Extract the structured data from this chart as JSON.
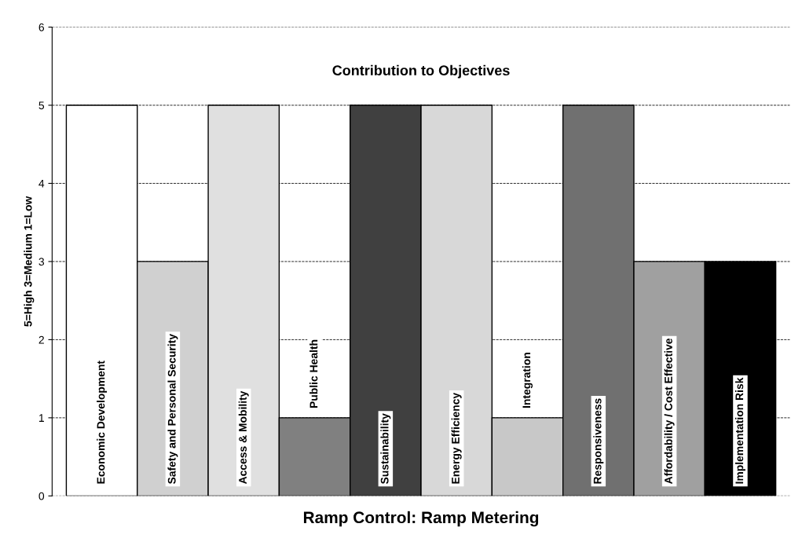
{
  "chart_data": {
    "type": "bar",
    "title": "Contribution to Objectives",
    "xlabel": "Ramp Control: Ramp Metering",
    "ylabel": "5=High 3=Medium 1=Low",
    "categories": [
      "Economic Development",
      "Safety and Personal Security",
      "Access & Mobility",
      "Public Health",
      "Sustainability",
      "Energy Efficiency",
      "Integration",
      "Responsiveness",
      "Affordability / Cost Effective",
      "Implementation Risk"
    ],
    "values": [
      5,
      3,
      5,
      1,
      5,
      5,
      1,
      5,
      3,
      3
    ],
    "colors": [
      "#ffffff",
      "#d0d0d0",
      "#e0e0e0",
      "#808080",
      "#404040",
      "#d8d8d8",
      "#c8c8c8",
      "#707070",
      "#a0a0a0",
      "#000000"
    ],
    "ylim": [
      0,
      6
    ],
    "yticks": [
      0,
      1,
      2,
      3,
      4,
      5,
      6
    ],
    "grid": "y",
    "line_style": "dashed"
  }
}
